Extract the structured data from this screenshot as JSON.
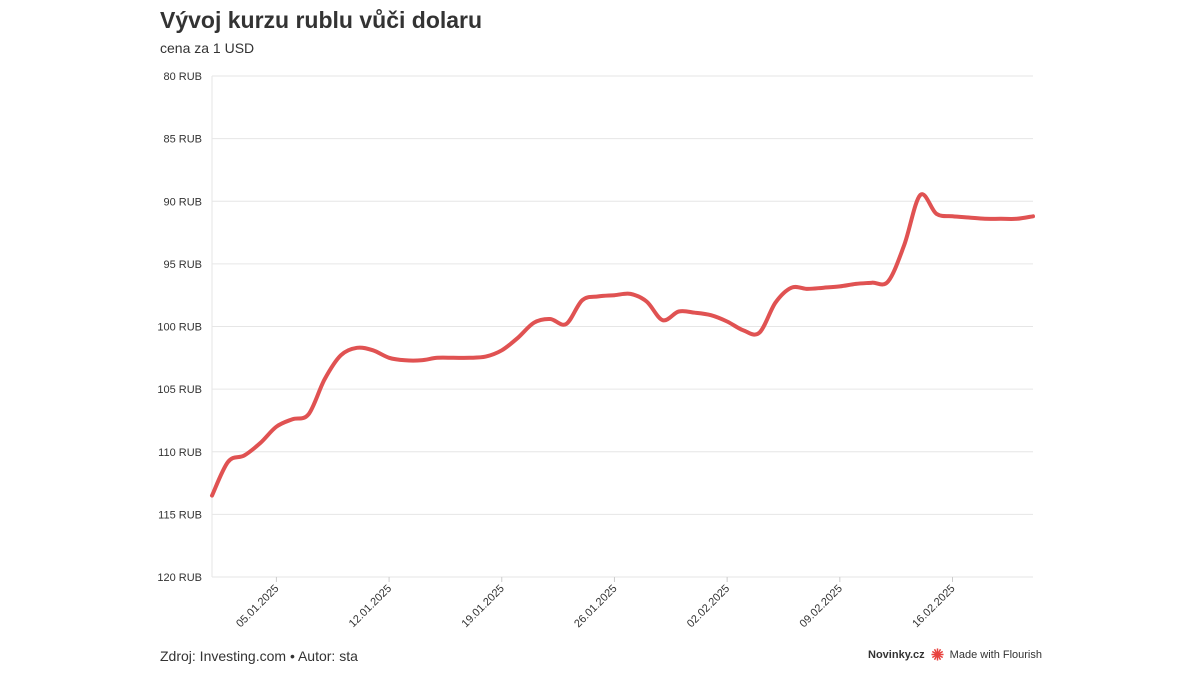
{
  "header": {
    "title": "Vývoj kurzu rublu vůči dolaru",
    "subtitle": "cena za 1 USD"
  },
  "footer": {
    "source": "Zdroj: Investing.com • Autor: sta",
    "brand": "Novinky.cz",
    "made_with": "Made with Flourish"
  },
  "colors": {
    "line": "#e05252",
    "grid": "#e6e6e6",
    "flourish_accent": "#e8413c"
  },
  "chart_data": {
    "type": "line",
    "title": "Vývoj kurzu rublu vůči dolaru",
    "subtitle": "cena za 1 USD",
    "y_reversed": true,
    "ylim": [
      80,
      120
    ],
    "y_ticks": [
      80,
      85,
      90,
      95,
      100,
      105,
      110,
      115,
      120
    ],
    "y_tick_labels": [
      "80 RUB",
      "85 RUB",
      "90 RUB",
      "95 RUB",
      "100 RUB",
      "105 RUB",
      "110 RUB",
      "115 RUB",
      "120 RUB"
    ],
    "xlim": [
      "2025-01-01",
      "2025-02-21"
    ],
    "x_ticks": [
      "2025-01-05",
      "2025-01-12",
      "2025-01-19",
      "2025-01-26",
      "2025-02-02",
      "2025-02-09",
      "2025-02-16"
    ],
    "x_tick_labels": [
      "05.01.2025",
      "12.01.2025",
      "19.01.2025",
      "26.01.2025",
      "02.02.2025",
      "09.02.2025",
      "16.02.2025"
    ],
    "grid": true,
    "series": [
      {
        "x": [
          "2025-01-01",
          "2025-01-02",
          "2025-01-03",
          "2025-01-04",
          "2025-01-05",
          "2025-01-06",
          "2025-01-07",
          "2025-01-08",
          "2025-01-09",
          "2025-01-10",
          "2025-01-11",
          "2025-01-12",
          "2025-01-13",
          "2025-01-14",
          "2025-01-15",
          "2025-01-16",
          "2025-01-17",
          "2025-01-18",
          "2025-01-19",
          "2025-01-20",
          "2025-01-21",
          "2025-01-22",
          "2025-01-23",
          "2025-01-24",
          "2025-01-25",
          "2025-01-26",
          "2025-01-27",
          "2025-01-28",
          "2025-01-29",
          "2025-01-30",
          "2025-01-31",
          "2025-02-01",
          "2025-02-02",
          "2025-02-03",
          "2025-02-04",
          "2025-02-05",
          "2025-02-06",
          "2025-02-07",
          "2025-02-08",
          "2025-02-09",
          "2025-02-10",
          "2025-02-11",
          "2025-02-12",
          "2025-02-13",
          "2025-02-14",
          "2025-02-15",
          "2025-02-16",
          "2025-02-17",
          "2025-02-18",
          "2025-02-19",
          "2025-02-20",
          "2025-02-21"
        ],
        "values": [
          113.5,
          110.8,
          110.3,
          109.3,
          108.0,
          107.4,
          107.0,
          104.2,
          102.3,
          101.7,
          101.9,
          102.5,
          102.7,
          102.7,
          102.5,
          102.5,
          102.5,
          102.4,
          101.9,
          100.9,
          99.7,
          99.4,
          99.8,
          97.9,
          97.6,
          97.5,
          97.4,
          98.0,
          99.5,
          98.8,
          98.9,
          99.1,
          99.6,
          100.3,
          100.5,
          98.1,
          96.9,
          97.0,
          96.9,
          96.8,
          96.6,
          96.5,
          96.4,
          93.5,
          89.5,
          91.0,
          91.2,
          91.3,
          91.4,
          91.4,
          91.4,
          91.2
        ]
      }
    ]
  }
}
